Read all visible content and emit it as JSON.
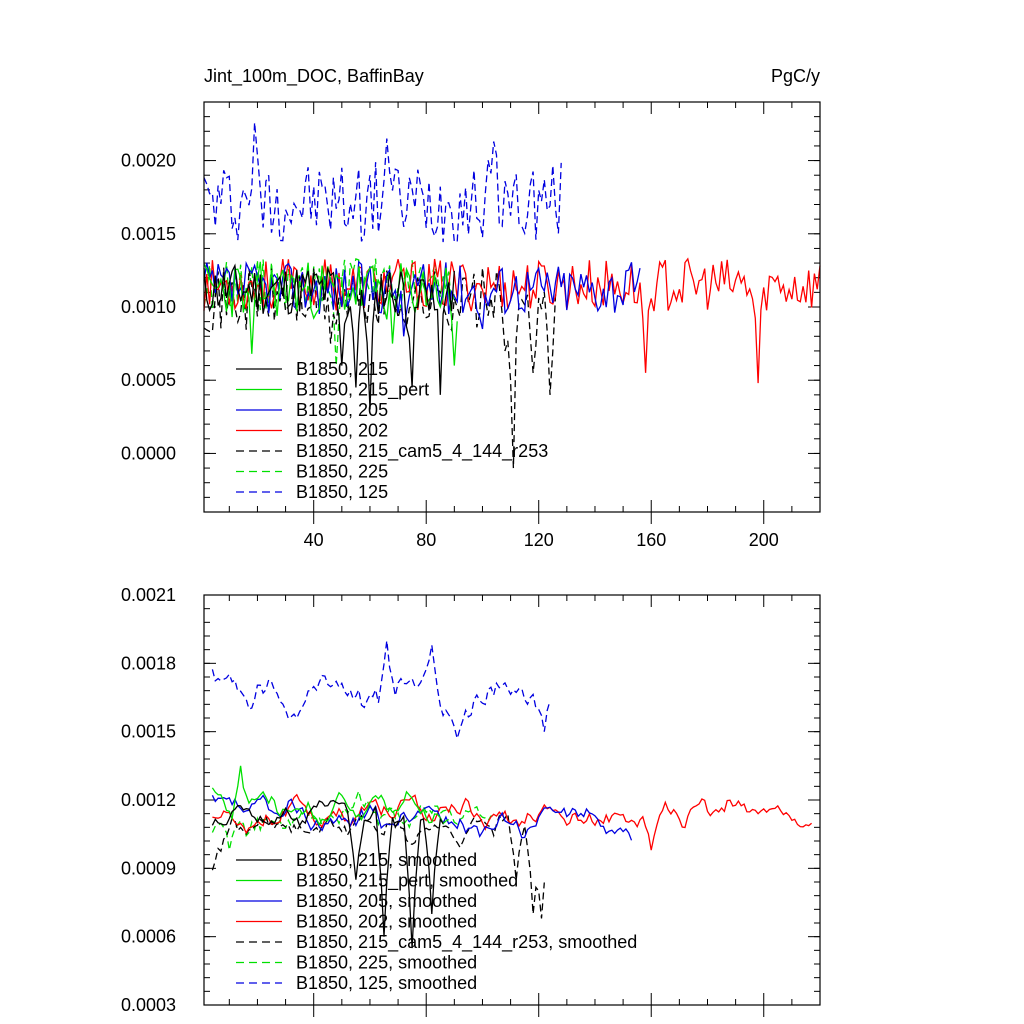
{
  "chart_data": [
    {
      "type": "line",
      "title_left": "Jint_100m_DOC, BaffinBay",
      "title_right": "PgC/y",
      "xlim": [
        1,
        220
      ],
      "ylim": [
        -0.0004,
        0.0024
      ],
      "x_ticks": [
        40,
        80,
        120,
        160,
        200
      ],
      "x_tick_labels": [
        "40",
        "80",
        "120",
        "160",
        "200"
      ],
      "y_ticks": [
        0.0,
        0.0005,
        0.001,
        0.0015,
        0.002
      ],
      "y_tick_labels": [
        "0.0000",
        "0.0005",
        "0.0010",
        "0.0015",
        "0.0020"
      ],
      "legend_position": "bottom-left",
      "series": [
        {
          "name": "B1850, 215",
          "color": "#000000",
          "dash": "solid",
          "x_start": 1,
          "x_end": 90,
          "mean": 0.00112,
          "amp": 0.00018,
          "seed": 11,
          "dips": [
            [
              50,
              0.0006
            ],
            [
              55,
              0.00045
            ],
            [
              60,
              0.0003
            ],
            [
              75,
              0.00045
            ],
            [
              85,
              0.0004
            ]
          ]
        },
        {
          "name": "B1850, 215_pert",
          "color": "#00e000",
          "dash": "solid",
          "x_start": 1,
          "x_end": 91,
          "mean": 0.00112,
          "amp": 0.0002,
          "seed": 23,
          "dips": [
            [
              18,
              0.00068
            ],
            [
              68,
              0.00075
            ],
            [
              90,
              0.0006
            ]
          ]
        },
        {
          "name": "B1850, 205",
          "color": "#0000e0",
          "dash": "solid",
          "x_start": 1,
          "x_end": 156,
          "mean": 0.00113,
          "amp": 0.00018,
          "seed": 37,
          "dips": [
            [
              72,
              0.0008
            ],
            [
              100,
              0.00085
            ]
          ]
        },
        {
          "name": "B1850, 202",
          "color": "#ff0000",
          "dash": "solid",
          "x_start": 1,
          "x_end": 220,
          "mean": 0.00115,
          "amp": 0.00018,
          "seed": 53,
          "dips": [
            [
              158,
              0.00055
            ],
            [
              198,
              0.00048
            ]
          ]
        },
        {
          "name": "B1850, 215_cam5_4_144_r253",
          "color": "#000000",
          "dash": "dashed",
          "x_start": 1,
          "x_end": 126,
          "mean": 0.00105,
          "amp": 0.00022,
          "seed": 71,
          "dips": [
            [
              46,
              0.00075
            ],
            [
              108,
              0.0007
            ],
            [
              111,
              -0.0001
            ],
            [
              118,
              0.00055
            ],
            [
              124,
              0.0004
            ]
          ]
        },
        {
          "name": "B1850, 225",
          "color": "#00e000",
          "dash": "dashed",
          "x_start": 1,
          "x_end": 90,
          "mean": 0.00115,
          "amp": 0.00018,
          "seed": 89,
          "dips": [
            [
              48,
              0.0006
            ]
          ]
        },
        {
          "name": "B1850, 125",
          "color": "#0000e0",
          "dash": "dashed",
          "x_start": 1,
          "x_end": 128,
          "mean": 0.00172,
          "amp": 0.00028,
          "seed": 97,
          "peaks": [
            [
              19,
              0.00226
            ],
            [
              66,
              0.00215
            ],
            [
              104,
              0.00213
            ]
          ]
        }
      ]
    },
    {
      "type": "line",
      "xlim": [
        1,
        220
      ],
      "ylim": [
        0.0003,
        0.0021
      ],
      "x_ticks": [
        40,
        80,
        120,
        160,
        200
      ],
      "y_ticks": [
        0.0003,
        0.0006,
        0.0009,
        0.0012,
        0.0015,
        0.0018,
        0.0021
      ],
      "y_tick_labels": [
        "0.0003",
        "0.0006",
        "0.0009",
        "0.0012",
        "0.0015",
        "0.0018",
        "0.0021"
      ],
      "legend_position": "bottom-left",
      "series": [
        {
          "name": "B1850, 215, smoothed",
          "color": "#000000",
          "dash": "solid",
          "x_start": 4,
          "x_end": 86,
          "mean": 0.00113,
          "amp": 8e-05,
          "seed": 11,
          "dips": [
            [
              55,
              0.00085
            ],
            [
              65,
              0.0006
            ],
            [
              75,
              0.00055
            ],
            [
              82,
              0.0007
            ]
          ]
        },
        {
          "name": "B1850, 215_pert, smoothed",
          "color": "#00e000",
          "dash": "solid",
          "x_start": 4,
          "x_end": 88,
          "mean": 0.00115,
          "amp": 9e-05,
          "seed": 23,
          "peaks": [
            [
              14,
              0.00135
            ]
          ]
        },
        {
          "name": "B1850, 205, smoothed",
          "color": "#0000e0",
          "dash": "solid",
          "x_start": 4,
          "x_end": 153,
          "mean": 0.00112,
          "amp": 8e-05,
          "seed": 37
        },
        {
          "name": "B1850, 202, smoothed",
          "color": "#ff0000",
          "dash": "solid",
          "x_start": 4,
          "x_end": 217,
          "mean": 0.00114,
          "amp": 8e-05,
          "seed": 53,
          "dips": [
            [
              160,
              0.00098
            ]
          ]
        },
        {
          "name": "B1850, 215_cam5_4_144_r253, smoothed",
          "color": "#000000",
          "dash": "dashed",
          "x_start": 4,
          "x_end": 122,
          "mean": 0.00108,
          "amp": 9e-05,
          "seed": 71,
          "dips": [
            [
              112,
              0.00085
            ],
            [
              118,
              0.0007
            ],
            [
              121,
              0.00068
            ]
          ]
        },
        {
          "name": "B1850, 225, smoothed",
          "color": "#00e000",
          "dash": "dashed",
          "x_start": 4,
          "x_end": 104,
          "mean": 0.00112,
          "amp": 9e-05,
          "seed": 89,
          "dips": [
            [
              10,
              0.00098
            ]
          ]
        },
        {
          "name": "B1850, 125, smoothed",
          "color": "#0000e0",
          "dash": "dashed",
          "x_start": 4,
          "x_end": 124,
          "mean": 0.00168,
          "amp": 0.00012,
          "seed": 97,
          "peaks": [
            [
              66,
              0.0019
            ],
            [
              82,
              0.00188
            ]
          ],
          "dips": [
            [
              91,
              0.00147
            ],
            [
              122,
              0.0015
            ]
          ]
        }
      ]
    }
  ]
}
